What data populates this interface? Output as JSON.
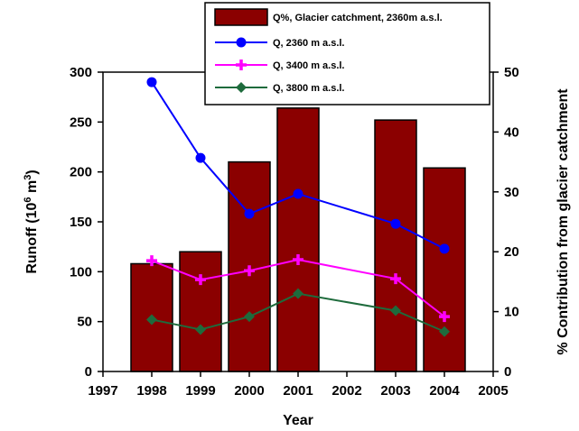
{
  "chart_data": {
    "type": "bar",
    "x_ticks": [
      "1997",
      "1998",
      "1999",
      "2000",
      "2001",
      "2002",
      "2003",
      "2004",
      "2005"
    ],
    "xlim": [
      1997,
      2005
    ],
    "xlabel": "Year",
    "ylabel": {
      "main": "Runoff (10",
      "sup1": "6",
      "mid": " m",
      "sup2": "3",
      "end": ")"
    },
    "ylabel_right": "% Contribution from glacier catchment",
    "ylim": [
      0,
      300
    ],
    "y_ticks": [
      "0",
      "50",
      "100",
      "150",
      "200",
      "250",
      "300"
    ],
    "ylim_right": [
      0,
      50
    ],
    "y_ticks_right": [
      "0",
      "10",
      "20",
      "30",
      "40",
      "50"
    ],
    "bars": {
      "name": "Q%, Glacier catchment, 2360m a.s.l.",
      "axis": "right",
      "color": "#8b0000",
      "x": [
        1998,
        1999,
        2000,
        2001,
        2003,
        2004
      ],
      "values": [
        18,
        20,
        35,
        44,
        42,
        34
      ]
    },
    "series": [
      {
        "name": "Q, 2360 m a.s.l.",
        "color": "#0000ff",
        "marker": "circle",
        "x": [
          1998,
          1999,
          2000,
          2001,
          2003,
          2004
        ],
        "values": [
          290,
          214,
          158,
          178,
          148,
          123
        ]
      },
      {
        "name": "Q, 3400 m a.s.l.",
        "color": "#ff00ff",
        "marker": "plus",
        "x": [
          1998,
          1999,
          2000,
          2001,
          2003,
          2004
        ],
        "values": [
          111,
          92,
          101,
          112,
          93,
          55
        ]
      },
      {
        "name": "Q, 3800 m a.s.l.",
        "color": "#1e6b3c",
        "marker": "diamond",
        "x": [
          1998,
          1999,
          2000,
          2001,
          2003,
          2004
        ],
        "values": [
          52,
          42,
          55,
          78,
          61,
          40
        ]
      }
    ],
    "legend_position": "top-right",
    "grid": false
  }
}
